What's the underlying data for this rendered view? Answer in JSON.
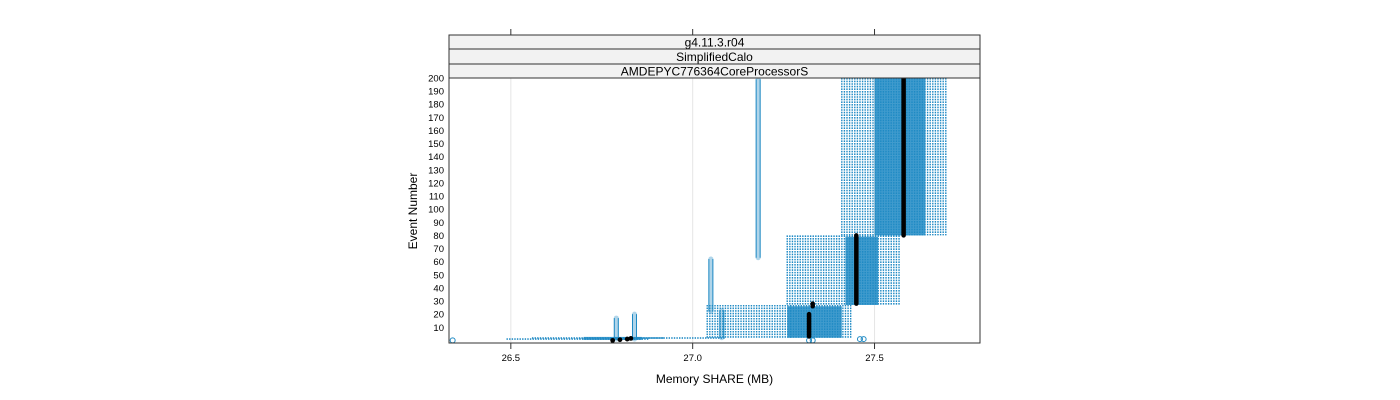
{
  "chart_data": {
    "type": "scatter",
    "strips": [
      "g4.11.3.r04",
      "SimplifiedCalo",
      "AMDEPYC776364CoreProcessorS"
    ],
    "xlabel": "Memory SHARE (MB)",
    "ylabel": "Event Number",
    "xlim": [
      26.33,
      27.79
    ],
    "ylim": [
      -2,
      200
    ],
    "x_ticks": [
      "26.5",
      "27.0",
      "27.5"
    ],
    "y_ticks": [
      "10",
      "20",
      "30",
      "40",
      "50",
      "60",
      "70",
      "80",
      "90",
      "100",
      "110",
      "120",
      "130",
      "140",
      "150",
      "160",
      "170",
      "180",
      "190",
      "200"
    ],
    "grid": "vertical",
    "colors": {
      "points": "#1f8ac4",
      "median": "#000000",
      "grid": "#e6e6e6"
    },
    "blocks": [
      {
        "x": [
          26.49,
          26.88
        ],
        "y": [
          0,
          0.7
        ]
      },
      {
        "x": [
          26.56,
          26.92
        ],
        "y": [
          0,
          1.5
        ]
      },
      {
        "x": [
          26.69,
          26.85
        ],
        "y": [
          0,
          2
        ]
      },
      {
        "x": [
          26.85,
          27.09
        ],
        "y": [
          0,
          1.5
        ]
      },
      {
        "x": [
          27.04,
          27.27
        ],
        "y": [
          2,
          27
        ]
      },
      {
        "x": [
          27.27,
          27.44
        ],
        "y": [
          2,
          27
        ]
      },
      {
        "x": [
          27.26,
          27.57
        ],
        "y": [
          27,
          80
        ]
      },
      {
        "x": [
          27.41,
          27.7
        ],
        "y": [
          80,
          200
        ]
      }
    ],
    "dense_blocks": [
      {
        "x": [
          26.7,
          26.86
        ],
        "y": [
          0,
          1.5
        ]
      },
      {
        "x": [
          27.26,
          27.41
        ],
        "y": [
          2,
          26
        ]
      },
      {
        "x": [
          27.42,
          27.51
        ],
        "y": [
          27,
          79
        ]
      },
      {
        "x": [
          27.5,
          27.64
        ],
        "y": [
          80,
          200
        ]
      }
    ],
    "spikes": [
      {
        "x": 26.79,
        "y": [
          1,
          17
        ]
      },
      {
        "x": 26.84,
        "y": [
          1,
          20
        ]
      },
      {
        "x": 27.05,
        "y": [
          22,
          62
        ]
      },
      {
        "x": 27.08,
        "y": [
          2,
          23
        ]
      },
      {
        "x": 27.18,
        "y": [
          63,
          199
        ]
      }
    ],
    "outliers": [
      {
        "x": 26.34,
        "y": 0
      },
      {
        "x": 27.32,
        "y": 0
      },
      {
        "x": 27.33,
        "y": 0
      },
      {
        "x": 27.46,
        "y": 1
      },
      {
        "x": 27.47,
        "y": 1
      }
    ],
    "median_path": [
      {
        "x": 26.78,
        "y": 0
      },
      {
        "x": 26.8,
        "y": 0.5
      },
      {
        "x": 26.82,
        "y": 1
      },
      {
        "x": 26.83,
        "y": 1.5
      },
      {
        "x": 27.32,
        "y": 3
      },
      {
        "x": 27.32,
        "y": 20
      },
      {
        "x": 27.33,
        "y": 26
      },
      {
        "x": 27.33,
        "y": 28
      },
      {
        "x": 27.45,
        "y": 28
      },
      {
        "x": 27.45,
        "y": 80
      },
      {
        "x": 27.58,
        "y": 80
      },
      {
        "x": 27.58,
        "y": 200
      }
    ]
  }
}
